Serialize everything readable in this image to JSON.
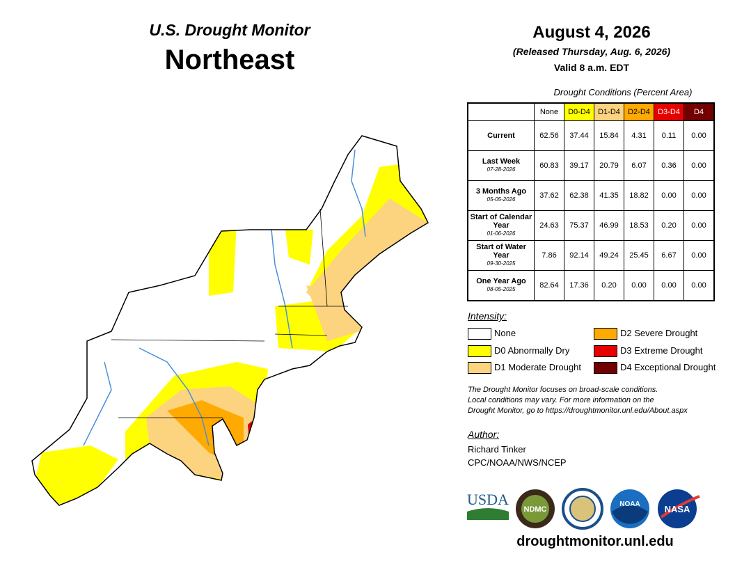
{
  "header": {
    "series": "U.S. Drought Monitor",
    "region": "Northeast",
    "date": "August 4, 2026",
    "released": "(Released Thursday, Aug. 6, 2026)",
    "valid": "Valid 8 a.m. EDT"
  },
  "table": {
    "caption": "Drought Conditions (Percent Area)",
    "columns": [
      {
        "label": "None",
        "color": "#ffffff",
        "text": "#000000"
      },
      {
        "label": "D0-D4",
        "color": "#ffff00",
        "text": "#000000"
      },
      {
        "label": "D1-D4",
        "color": "#fcd37f",
        "text": "#000000"
      },
      {
        "label": "D2-D4",
        "color": "#ffaa00",
        "text": "#000000"
      },
      {
        "label": "D3-D4",
        "color": "#e60000",
        "text": "#ffffff"
      },
      {
        "label": "D4",
        "color": "#730000",
        "text": "#ffffff"
      }
    ],
    "rows": [
      {
        "label": "Current",
        "values": [
          "62.56",
          "37.44",
          "15.84",
          "4.31",
          "0.11",
          "0.00"
        ]
      },
      {
        "label": "Last Week",
        "date": "07-28-2026",
        "values": [
          "60.83",
          "39.17",
          "20.79",
          "6.07",
          "0.36",
          "0.00"
        ]
      },
      {
        "label": "3 Months Ago",
        "date": "05-05-2026",
        "values": [
          "37.62",
          "62.38",
          "41.35",
          "18.82",
          "0.00",
          "0.00"
        ]
      },
      {
        "label": "Start of Calendar Year",
        "date": "01-06-2026",
        "values": [
          "24.63",
          "75.37",
          "46.99",
          "18.53",
          "0.20",
          "0.00"
        ]
      },
      {
        "label": "Start of Water Year",
        "date": "09-30-2025",
        "values": [
          "7.86",
          "92.14",
          "49.24",
          "25.45",
          "6.67",
          "0.00"
        ]
      },
      {
        "label": "One Year Ago",
        "date": "08-05-2025",
        "values": [
          "82.64",
          "17.36",
          "0.20",
          "0.00",
          "0.00",
          "0.00"
        ]
      }
    ]
  },
  "legend": {
    "title": "Intensity:",
    "items": [
      {
        "label": "None",
        "color": "#ffffff"
      },
      {
        "label": "D0 Abnormally Dry",
        "color": "#ffff00"
      },
      {
        "label": "D1 Moderate Drought",
        "color": "#fcd37f"
      },
      {
        "label": "D2 Severe Drought",
        "color": "#ffaa00"
      },
      {
        "label": "D3 Extreme Drought",
        "color": "#e60000"
      },
      {
        "label": "D4 Exceptional Drought",
        "color": "#730000"
      }
    ]
  },
  "note": [
    "The Drought Monitor focuses on broad-scale conditions.",
    "Local conditions may vary. For more information on the",
    "Drought Monitor, go to https://droughtmonitor.unl.edu/About.aspx"
  ],
  "author": {
    "title": "Author:",
    "name": "Richard Tinker",
    "org": "CPC/NOAA/NWS/NCEP"
  },
  "logos": [
    "USDA",
    "NDMC",
    "NOAA",
    "NASA"
  ],
  "url": "droughtmonitor.unl.edu"
}
